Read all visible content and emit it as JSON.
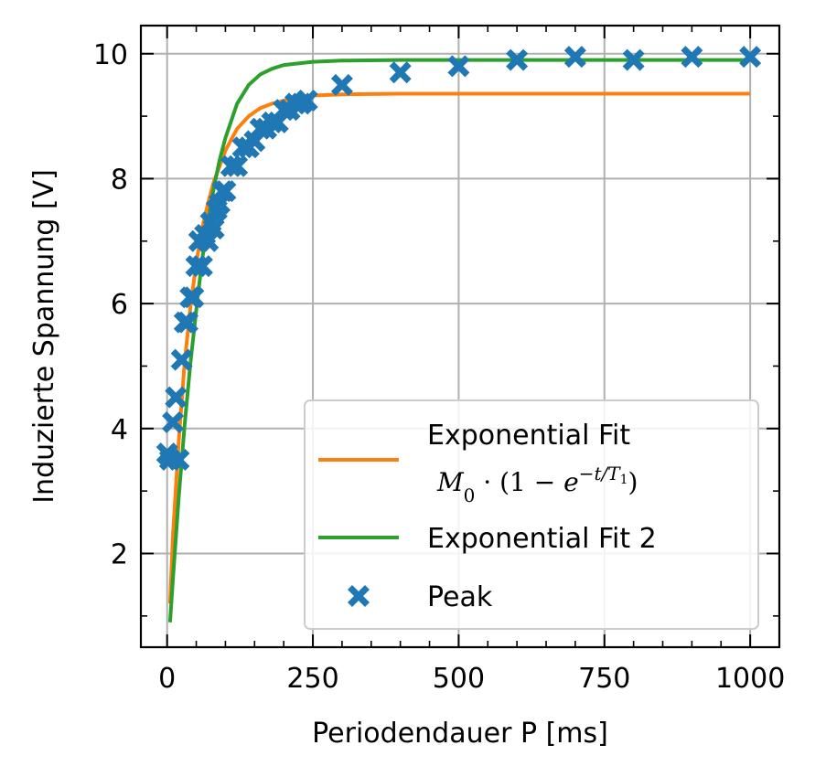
{
  "chart_data": {
    "type": "scatter",
    "xlabel": "Periodendauer P [ms]",
    "ylabel": "Induzierte Spannung [V]",
    "xlim": [
      -45,
      1050
    ],
    "ylim": [
      0.5,
      10.45
    ],
    "xticks": [
      0,
      250,
      500,
      750,
      1000
    ],
    "yticks": [
      2,
      4,
      6,
      8,
      10
    ],
    "xtick_labels": [
      "0",
      "250",
      "500",
      "750",
      "1000"
    ],
    "ytick_labels": [
      "2",
      "4",
      "6",
      "8",
      "10"
    ],
    "grid": true,
    "legend_position": "lower-right",
    "series": [
      {
        "name": "Exponential Fit",
        "name_line2": "M₀ · (1 − e^(−t/T₁))",
        "type": "line",
        "color": "#ff7f0e",
        "x": [
          5,
          10,
          20,
          30,
          40,
          50,
          60,
          70,
          80,
          90,
          100,
          120,
          140,
          160,
          180,
          200,
          250,
          300,
          400,
          500,
          600,
          700,
          800,
          900,
          1000
        ],
        "y": [
          1.2,
          2.3,
          3.8,
          5.05,
          5.95,
          6.65,
          7.2,
          7.6,
          7.95,
          8.2,
          8.45,
          8.8,
          9.0,
          9.13,
          9.2,
          9.25,
          9.33,
          9.35,
          9.36,
          9.36,
          9.36,
          9.36,
          9.36,
          9.36,
          9.36
        ]
      },
      {
        "name": "Exponential Fit 2",
        "type": "line",
        "color": "#2ca02c",
        "x": [
          5,
          10,
          20,
          30,
          40,
          50,
          60,
          70,
          80,
          90,
          100,
          120,
          140,
          160,
          180,
          200,
          250,
          300,
          400,
          500,
          600,
          700,
          800,
          900,
          1000
        ],
        "y": [
          0.9,
          1.6,
          2.9,
          4.05,
          5.05,
          5.9,
          6.7,
          7.3,
          7.85,
          8.3,
          8.65,
          9.2,
          9.5,
          9.67,
          9.76,
          9.82,
          9.87,
          9.89,
          9.9,
          9.9,
          9.9,
          9.9,
          9.9,
          9.9,
          9.9
        ]
      },
      {
        "name": "Peak",
        "type": "scatter",
        "marker": "x",
        "color": "#1f77b4",
        "x": [
          0,
          5,
          10,
          15,
          20,
          25,
          30,
          35,
          40,
          45,
          50,
          55,
          60,
          65,
          70,
          75,
          80,
          85,
          90,
          95,
          100,
          110,
          120,
          130,
          140,
          150,
          160,
          170,
          180,
          190,
          200,
          210,
          220,
          230,
          240,
          300,
          400,
          500,
          600,
          700,
          800,
          900,
          1000
        ],
        "y": [
          3.6,
          3.5,
          4.1,
          4.5,
          3.5,
          5.1,
          5.7,
          5.7,
          6.1,
          6.1,
          6.6,
          7.0,
          6.6,
          7.1,
          7.0,
          7.3,
          7.2,
          7.5,
          7.6,
          7.8,
          7.8,
          8.2,
          8.2,
          8.5,
          8.5,
          8.6,
          8.8,
          8.8,
          8.9,
          8.9,
          9.1,
          9.1,
          9.2,
          9.2,
          9.25,
          9.5,
          9.7,
          9.8,
          9.9,
          9.95,
          9.9,
          9.95,
          9.95
        ]
      }
    ]
  }
}
